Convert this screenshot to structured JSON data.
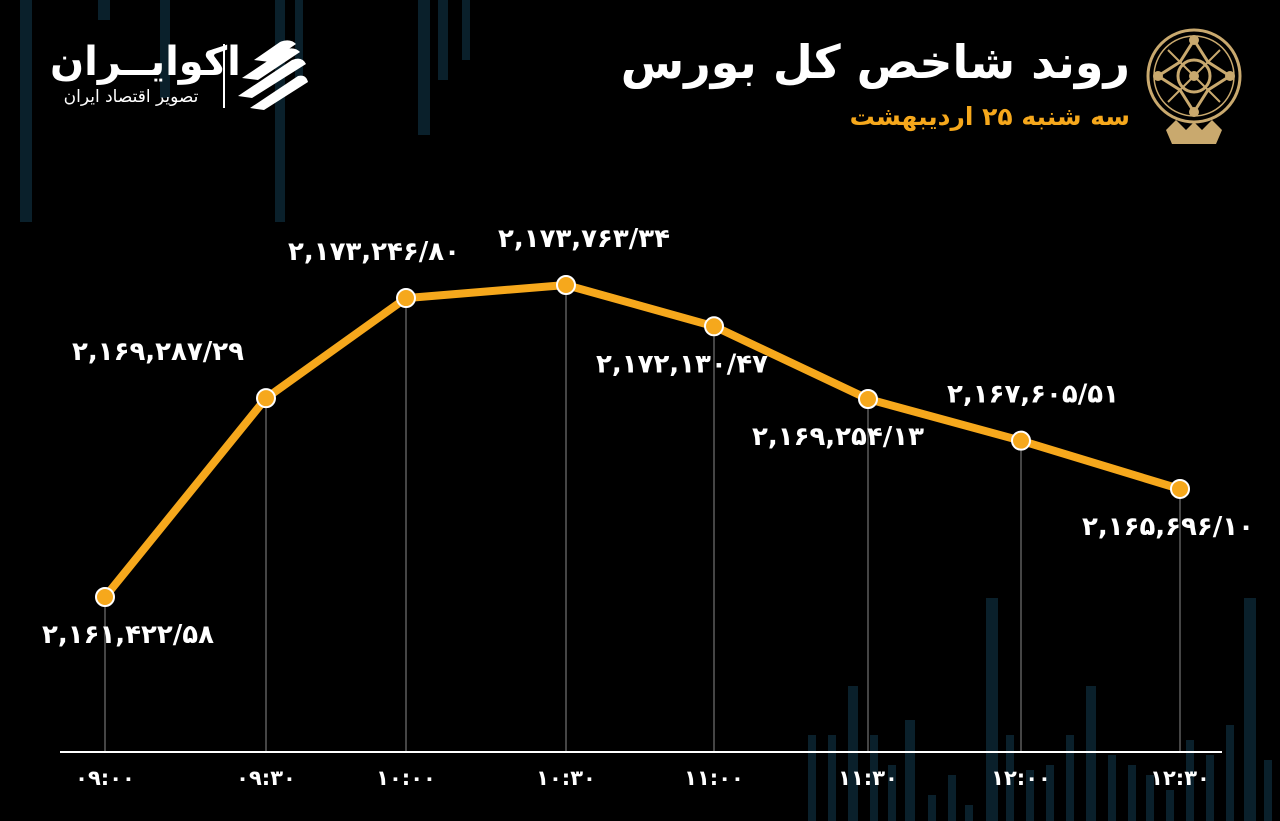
{
  "header": {
    "title": "روند شاخص کل بورس",
    "subtitle": "سه شنبه ۲۵ اردیبهشت"
  },
  "brand": {
    "name": "اکوایــران",
    "tagline": "تصویر اقتصاد ایران"
  },
  "colors": {
    "background": "#000000",
    "line": "#f6a81c",
    "text": "#ffffff",
    "accent": "#f6a81c",
    "seal": "#c9a96e"
  },
  "icons": {
    "brand": "stacked-stripes-logo-icon",
    "seal": "stock-exchange-seal-icon"
  },
  "chart_data": {
    "type": "line",
    "title": "روند شاخص کل بورس",
    "x": [
      "۰۹:۰۰",
      "۰۹:۳۰",
      "۱۰:۰۰",
      "۱۰:۳۰",
      "۱۱:۰۰",
      "۱۱:۳۰",
      "۱۲:۰۰",
      "۱۲:۳۰"
    ],
    "values": [
      2161422.58,
      2169287.29,
      2173246.8,
      2173763.34,
      2172130.47,
      2169254.13,
      2167605.51,
      2165696.1
    ],
    "data_labels": [
      "۲,۱۶۱,۴۲۲/۵۸",
      "۲,۱۶۹,۲۸۷/۲۹",
      "۲,۱۷۳,۲۴۶/۸۰",
      "۲,۱۷۳,۷۶۳/۳۴",
      "۲,۱۷۲,۱۳۰/۴۷",
      "۲,۱۶۹,۲۵۴/۱۳",
      "۲,۱۶۷,۶۰۵/۵۱",
      "۲,۱۶۵,۶۹۶/۱۰"
    ],
    "label_positions": [
      "below",
      "above",
      "above",
      "above",
      "below",
      "below",
      "above",
      "below"
    ],
    "grid": false,
    "drop_lines": true,
    "markers": true
  }
}
